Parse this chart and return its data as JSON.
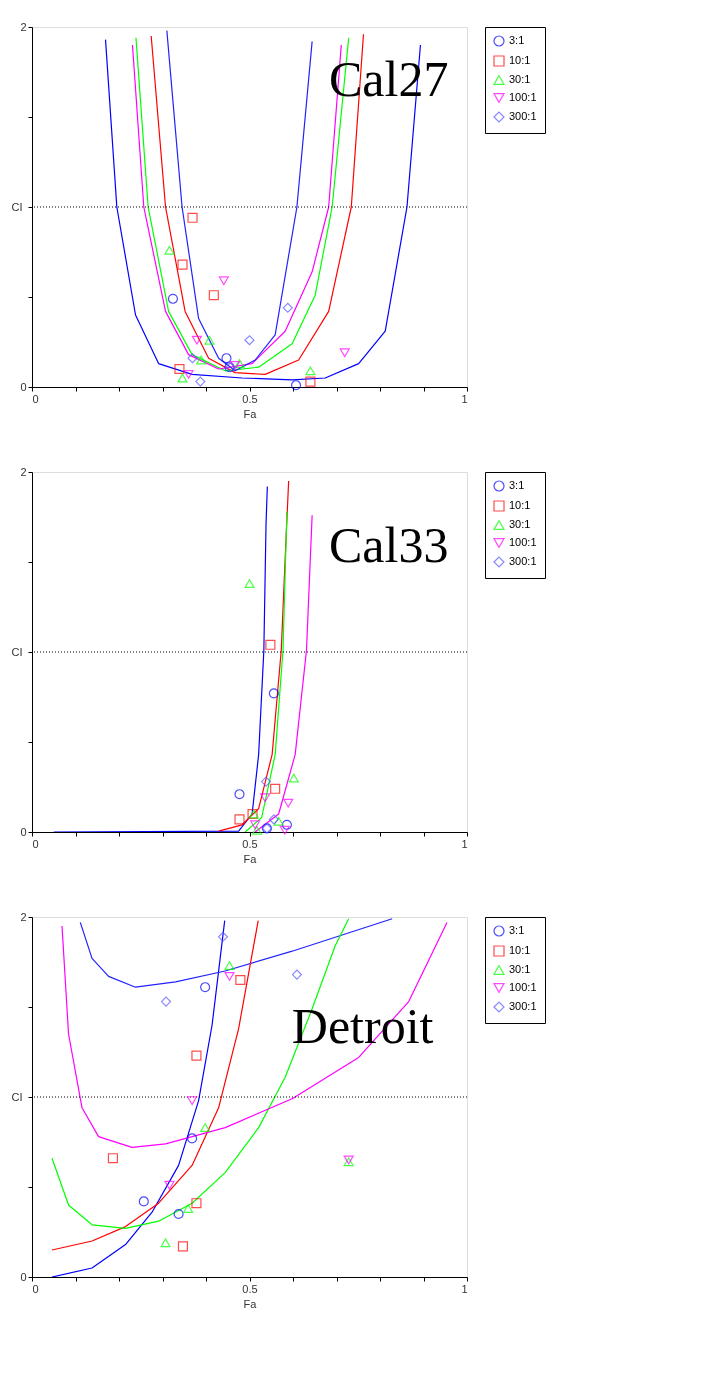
{
  "chart_data": [
    {
      "type": "scatter",
      "title": "Cal27",
      "xlabel": "Fa",
      "ylabel": "CI",
      "xlim": [
        0,
        1
      ],
      "ylim": [
        0,
        2
      ],
      "xticks": [
        0,
        {
          "value": 0.1,
          "label": null
        },
        {
          "value": 0.2,
          "label": null
        },
        {
          "value": 0.3,
          "label": null
        },
        {
          "value": 0.4,
          "label": null
        },
        0.5,
        {
          "value": 0.6,
          "label": null
        },
        {
          "value": 0.7,
          "label": null
        },
        {
          "value": 0.8,
          "label": null
        },
        {
          "value": 0.9,
          "label": null
        },
        1
      ],
      "yticks": [
        0,
        {
          "value": 0.5,
          "label": null
        },
        {
          "value": 1,
          "label": null
        },
        {
          "value": 1.5,
          "label": null
        },
        2
      ],
      "grid": false,
      "legend": "right",
      "ref_lines": [
        {
          "axis": "y",
          "value": 1,
          "label": null,
          "color": "#000000",
          "line_style": "dotted"
        }
      ],
      "series": [
        {
          "type": "scatter",
          "name": "3:1",
          "color": "#0000ff",
          "marker": "circle",
          "x": [
            0.324,
            0.447,
            0.454,
            0.607
          ],
          "values": [
            0.49,
            0.16,
            0.11,
            0.01
          ]
        },
        {
          "type": "scatter",
          "name": "10:1",
          "color": "#ff0000",
          "marker": "square",
          "x": [
            0.369,
            0.346,
            0.418,
            0.339,
            0.64
          ],
          "values": [
            0.94,
            0.68,
            0.51,
            0.1,
            0.03
          ]
        },
        {
          "type": "scatter",
          "name": "30:1",
          "color": "#00ff00",
          "marker": "triangle",
          "x": [
            0.316,
            0.408,
            0.389,
            0.477,
            0.64,
            0.346
          ],
          "values": [
            0.76,
            0.26,
            0.15,
            0.13,
            0.09,
            0.05
          ]
        },
        {
          "type": "scatter",
          "name": "100:1",
          "color": "#ff00ff",
          "marker": "triangle-down",
          "x": [
            0.441,
            0.379,
            0.719,
            0.467,
            0.36
          ],
          "values": [
            0.59,
            0.26,
            0.19,
            0.12,
            0.07
          ]
        },
        {
          "type": "scatter",
          "name": "300:1",
          "color": "#5555ff",
          "marker": "diamond",
          "x": [
            0.588,
            0.5,
            0.369,
            0.456,
            0.387
          ],
          "values": [
            0.44,
            0.26,
            0.16,
            0.11,
            0.03
          ]
        },
        {
          "type": "line",
          "color": "#0000ff",
          "line_style": "solid",
          "x": [
            0.169,
            0.195,
            0.238,
            0.291,
            0.368,
            0.483,
            0.598,
            0.674,
            0.751,
            0.812,
            0.862,
            0.893
          ],
          "values": [
            1.93,
            1.0,
            0.4,
            0.13,
            0.07,
            0.05,
            0.04,
            0.05,
            0.13,
            0.31,
            1.0,
            1.9
          ]
        },
        {
          "type": "line",
          "color": "#ff0000",
          "line_style": "solid",
          "x": [
            0.274,
            0.307,
            0.352,
            0.406,
            0.467,
            0.536,
            0.613,
            0.682,
            0.734,
            0.762
          ],
          "values": [
            1.95,
            1.0,
            0.42,
            0.16,
            0.08,
            0.07,
            0.15,
            0.42,
            1.0,
            1.96
          ]
        },
        {
          "type": "line",
          "color": "#00ff00",
          "line_style": "solid",
          "x": [
            0.239,
            0.267,
            0.314,
            0.368,
            0.444,
            0.521,
            0.598,
            0.651,
            0.69,
            0.728
          ],
          "values": [
            1.94,
            1.0,
            0.42,
            0.18,
            0.09,
            0.11,
            0.24,
            0.51,
            1.0,
            1.94
          ]
        },
        {
          "type": "line",
          "color": "#ff00ff",
          "line_style": "solid",
          "x": [
            0.231,
            0.257,
            0.307,
            0.36,
            0.429,
            0.506,
            0.582,
            0.644,
            0.682,
            0.711
          ],
          "values": [
            1.9,
            1.0,
            0.42,
            0.18,
            0.1,
            0.13,
            0.31,
            0.64,
            1.0,
            1.9
          ]
        },
        {
          "type": "line",
          "color": "#2222ff",
          "line_style": "solid",
          "x": [
            0.31,
            0.345,
            0.383,
            0.429,
            0.467,
            0.513,
            0.559,
            0.609,
            0.644
          ],
          "values": [
            1.98,
            1.0,
            0.38,
            0.16,
            0.09,
            0.15,
            0.29,
            1.0,
            1.92
          ]
        }
      ]
    },
    {
      "type": "scatter",
      "title": "Cal33",
      "xlabel": "Fa",
      "ylabel": "CI",
      "xlim": [
        0,
        1
      ],
      "ylim": [
        0,
        2
      ],
      "xticks": [
        0,
        {
          "value": 0.1,
          "label": null
        },
        {
          "value": 0.2,
          "label": null
        },
        {
          "value": 0.3,
          "label": null
        },
        {
          "value": 0.4,
          "label": null
        },
        0.5,
        {
          "value": 0.6,
          "label": null
        },
        {
          "value": 0.7,
          "label": null
        },
        {
          "value": 0.8,
          "label": null
        },
        {
          "value": 0.9,
          "label": null
        },
        1
      ],
      "yticks": [
        0,
        {
          "value": 0.5,
          "label": null
        },
        {
          "value": 1,
          "label": null
        },
        {
          "value": 1.5,
          "label": null
        },
        2
      ],
      "grid": false,
      "legend": "right",
      "ref_lines": [
        {
          "axis": "y",
          "value": 1,
          "label": null,
          "color": "#000000",
          "line_style": "dotted"
        }
      ],
      "series": [
        {
          "type": "scatter",
          "name": "3:1",
          "color": "#0000ff",
          "marker": "circle",
          "x": [
            0.477,
            0.556,
            0.54,
            0.586
          ],
          "values": [
            0.21,
            0.77,
            0.02,
            0.04
          ]
        },
        {
          "type": "scatter",
          "name": "10:1",
          "color": "#ff0000",
          "marker": "square",
          "x": [
            0.548,
            0.559,
            0.477,
            0.507
          ],
          "values": [
            1.04,
            0.24,
            0.07,
            0.1
          ]
        },
        {
          "type": "scatter",
          "name": "30:1",
          "color": "#00ff00",
          "marker": "triangle",
          "x": [
            0.5,
            0.602,
            0.51,
            0.567,
            0.517
          ],
          "values": [
            1.38,
            0.3,
            0.1,
            0.06,
            0.01
          ]
        },
        {
          "type": "scatter",
          "name": "100:1",
          "color": "#ff00ff",
          "marker": "triangle-down",
          "x": [
            0.536,
            0.589,
            0.513,
            0.581
          ],
          "values": [
            0.19,
            0.16,
            0.04,
            0.01
          ]
        },
        {
          "type": "scatter",
          "name": "300:1",
          "color": "#5555ff",
          "marker": "diamond",
          "x": [
            0.538,
            0.556,
            0.54
          ],
          "values": [
            0.28,
            0.07,
            0.02
          ]
        },
        {
          "type": "line",
          "color": "#0000ff",
          "line_style": "solid",
          "x": [
            0.05,
            0.475,
            0.506,
            0.521,
            0.533,
            0.538,
            0.541
          ],
          "values": [
            0,
            0.005,
            0.1,
            0.43,
            1.01,
            1.71,
            1.92
          ]
        },
        {
          "type": "line",
          "color": "#ff0000",
          "line_style": "solid",
          "x": [
            0.429,
            0.483,
            0.521,
            0.552,
            0.573,
            0.582,
            0.59
          ],
          "values": [
            0.005,
            0.04,
            0.13,
            0.43,
            1.01,
            1.52,
            1.95
          ]
        },
        {
          "type": "line",
          "color": "#00ff00",
          "line_style": "solid",
          "x": [
            0.49,
            0.528,
            0.559,
            0.577,
            0.586
          ],
          "values": [
            0,
            0.08,
            0.43,
            1.01,
            1.78
          ]
        },
        {
          "type": "line",
          "color": "#ff00ff",
          "line_style": "solid",
          "x": [
            0.513,
            0.567,
            0.605,
            0.631,
            0.644
          ],
          "values": [
            0,
            0.1,
            0.43,
            1.01,
            1.76
          ]
        }
      ]
    },
    {
      "type": "scatter",
      "title": "Detroit",
      "xlabel": "Fa",
      "ylabel": "CI",
      "xlim": [
        0,
        1
      ],
      "ylim": [
        0,
        2
      ],
      "xticks": [
        0,
        {
          "value": 0.1,
          "label": null
        },
        {
          "value": 0.2,
          "label": null
        },
        {
          "value": 0.3,
          "label": null
        },
        {
          "value": 0.4,
          "label": null
        },
        0.5,
        {
          "value": 0.6,
          "label": null
        },
        {
          "value": 0.7,
          "label": null
        },
        {
          "value": 0.8,
          "label": null
        },
        {
          "value": 0.9,
          "label": null
        },
        1
      ],
      "yticks": [
        0,
        {
          "value": 0.5,
          "label": null
        },
        {
          "value": 1,
          "label": null
        },
        {
          "value": 1.5,
          "label": null
        },
        2
      ],
      "grid": false,
      "legend": "right",
      "ref_lines": [
        {
          "axis": "y",
          "value": 1,
          "label": null,
          "color": "#000000",
          "line_style": "dotted"
        }
      ],
      "series": [
        {
          "type": "scatter",
          "name": "3:1",
          "color": "#0000ff",
          "marker": "circle",
          "x": [
            0.398,
            0.368,
            0.257,
            0.337
          ],
          "values": [
            1.61,
            0.77,
            0.42,
            0.35
          ]
        },
        {
          "type": "scatter",
          "name": "10:1",
          "color": "#ff0000",
          "marker": "square",
          "x": [
            0.479,
            0.378,
            0.186,
            0.378,
            0.347
          ],
          "values": [
            1.65,
            1.23,
            0.66,
            0.41,
            0.17
          ]
        },
        {
          "type": "scatter",
          "name": "30:1",
          "color": "#00ff00",
          "marker": "triangle",
          "x": [
            0.454,
            0.398,
            0.359,
            0.307,
            0.728
          ],
          "values": [
            1.73,
            0.83,
            0.38,
            0.19,
            0.64
          ]
        },
        {
          "type": "scatter",
          "name": "100:1",
          "color": "#ff00ff",
          "marker": "triangle-down",
          "x": [
            0.454,
            0.368,
            0.316,
            0.728
          ],
          "values": [
            1.67,
            0.98,
            0.51,
            0.65
          ]
        },
        {
          "type": "scatter",
          "name": "300:1",
          "color": "#5555ff",
          "marker": "diamond",
          "x": [
            0.439,
            0.308,
            0.609
          ],
          "values": [
            1.89,
            1.53,
            1.68
          ]
        },
        {
          "type": "line",
          "color": "#0000ff",
          "line_style": "solid",
          "x": [
            0.046,
            0.138,
            0.215,
            0.276,
            0.337,
            0.383,
            0.414,
            0.443
          ],
          "values": [
            0,
            0.05,
            0.18,
            0.36,
            0.62,
            0.98,
            1.4,
            1.98
          ]
        },
        {
          "type": "line",
          "color": "#2222ff",
          "line_style": "solid",
          "x": [
            0.111,
            0.138,
            0.176,
            0.238,
            0.33,
            0.444,
            0.598,
            0.713,
            0.828
          ],
          "values": [
            1.97,
            1.77,
            1.67,
            1.61,
            1.64,
            1.7,
            1.81,
            1.9,
            1.99
          ]
        },
        {
          "type": "line",
          "color": "#ff0000",
          "line_style": "solid",
          "x": [
            0.046,
            0.138,
            0.215,
            0.291,
            0.368,
            0.429,
            0.475,
            0.52
          ],
          "values": [
            0.15,
            0.2,
            0.28,
            0.41,
            0.62,
            0.94,
            1.38,
            1.98
          ]
        },
        {
          "type": "line",
          "color": "#00ff00",
          "line_style": "solid",
          "x": [
            0.046,
            0.084,
            0.138,
            0.215,
            0.291,
            0.368,
            0.444,
            0.521,
            0.582,
            0.644,
            0.697,
            0.728
          ],
          "values": [
            0.66,
            0.4,
            0.29,
            0.27,
            0.31,
            0.41,
            0.58,
            0.83,
            1.11,
            1.49,
            1.84,
            1.99
          ]
        },
        {
          "type": "line",
          "color": "#ff00ff",
          "line_style": "solid",
          "x": [
            0.069,
            0.084,
            0.115,
            0.153,
            0.23,
            0.307,
            0.444,
            0.598,
            0.751,
            0.866,
            0.954
          ],
          "values": [
            1.95,
            1.35,
            0.94,
            0.78,
            0.72,
            0.74,
            0.83,
            0.99,
            1.22,
            1.53,
            1.97
          ]
        }
      ]
    }
  ]
}
